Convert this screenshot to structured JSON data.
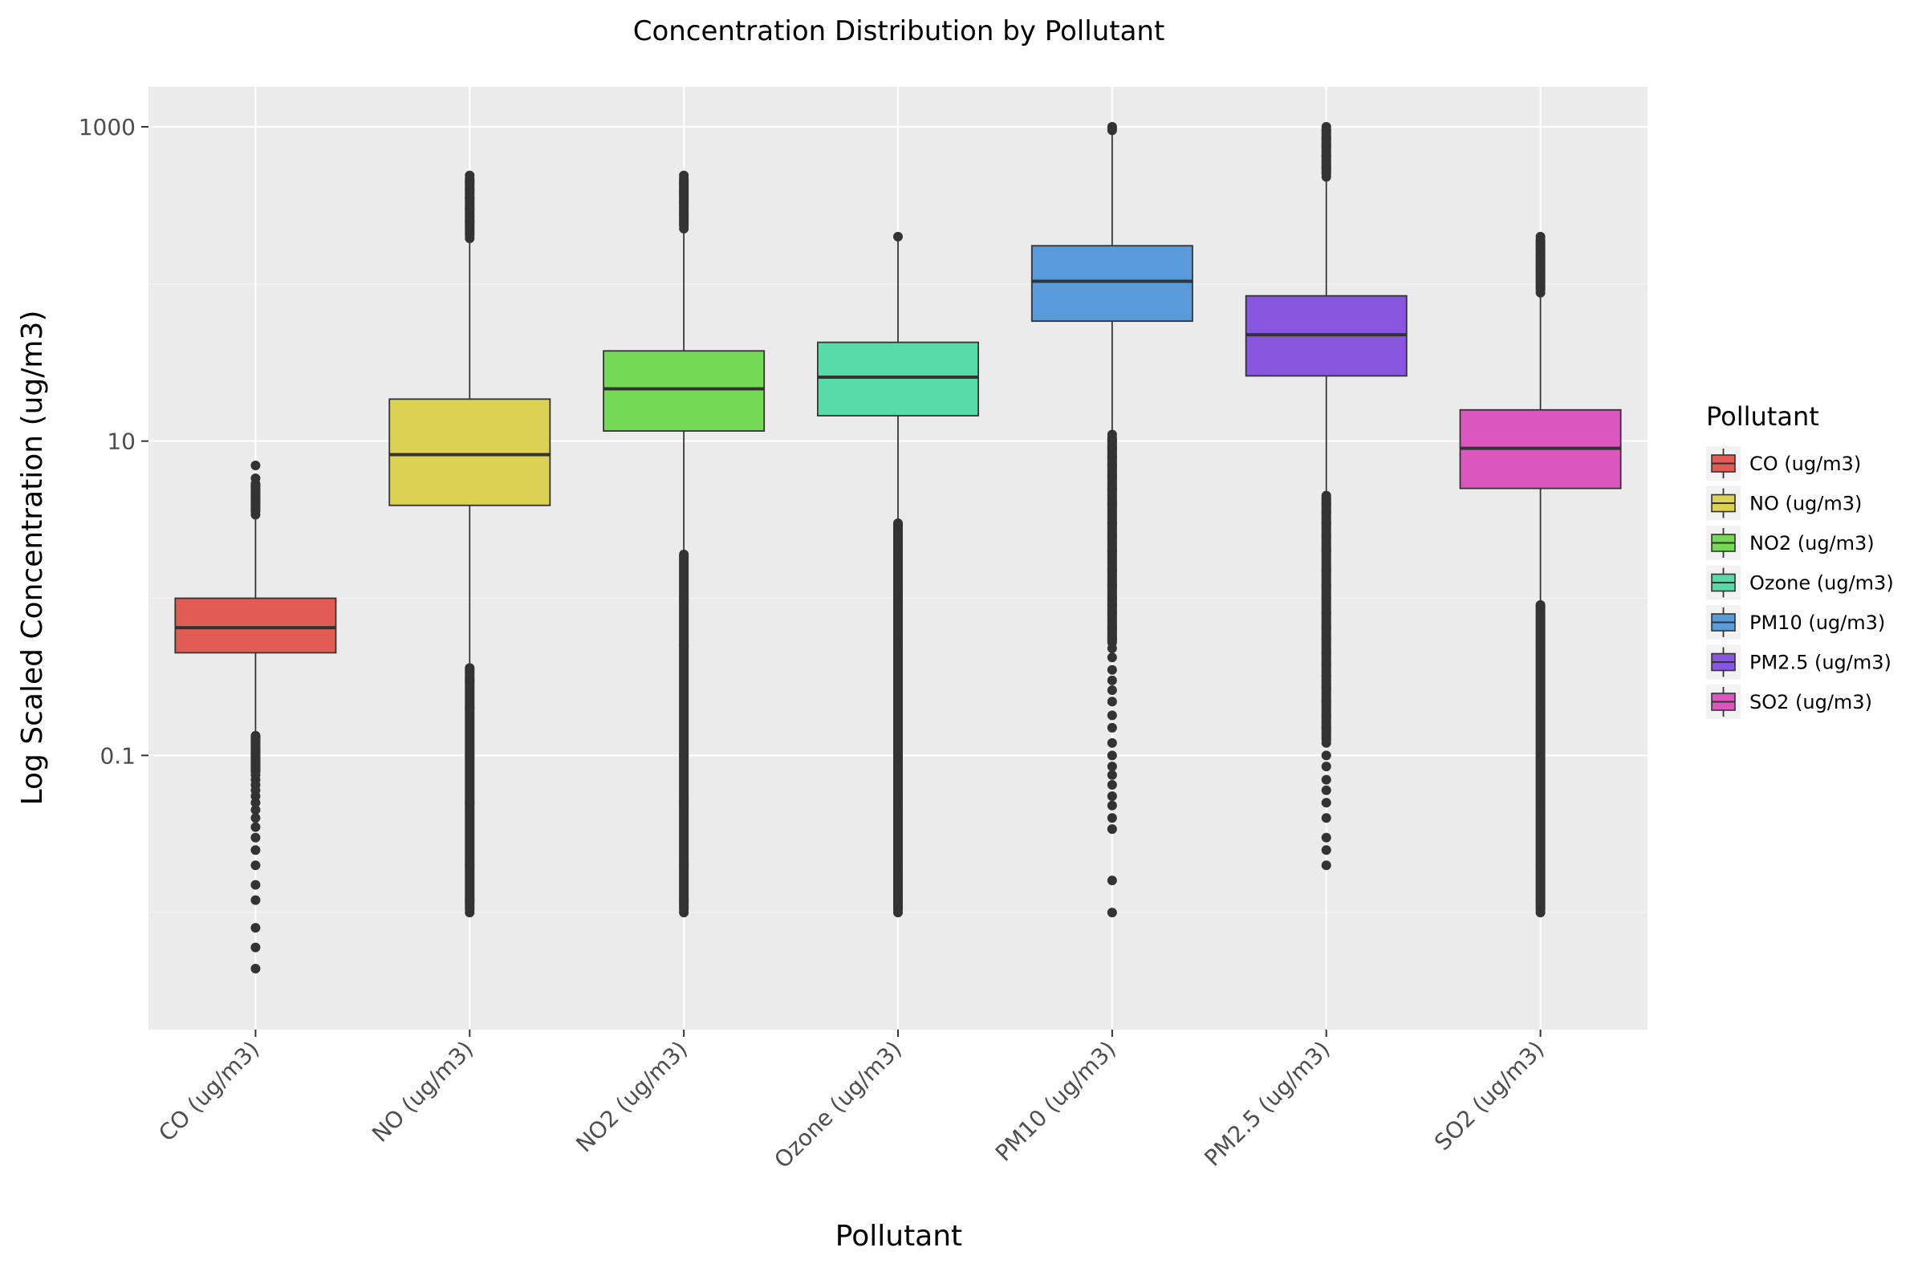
{
  "chart_data": {
    "type": "box",
    "title": "Concentration Distribution by Pollutant",
    "xlabel": "Pollutant",
    "ylabel": "Log Scaled Concentration (ug/m3)",
    "yscale": "log10",
    "ylim": [
      0.0018,
      1800
    ],
    "yticks": [
      {
        "value": 0.1,
        "label": "0.1"
      },
      {
        "value": 10,
        "label": "10"
      },
      {
        "value": 1000,
        "label": "1000"
      }
    ],
    "grid": true,
    "legend": {
      "title": "Pollutant",
      "position": "right"
    },
    "categories": [
      "CO (ug/m3)",
      "NO (ug/m3)",
      "NO2 (ug/m3)",
      "Ozone (ug/m3)",
      "PM10 (ug/m3)",
      "PM2.5 (ug/m3)",
      "SO2 (ug/m3)"
    ],
    "series": [
      {
        "name": "CO (ug/m3)",
        "color": "#e05c54",
        "q1": 0.45,
        "median": 0.65,
        "q3": 1.0,
        "whisker_low": 0.14,
        "whisker_high": 3.3,
        "outliers_low": [
          0.13,
          0.12,
          0.11,
          0.105,
          0.1,
          0.095,
          0.09,
          0.085,
          0.08,
          0.075,
          0.07,
          0.065,
          0.06,
          0.055,
          0.05,
          0.045,
          0.04,
          0.035,
          0.03,
          0.025,
          0.02,
          0.015,
          0.012,
          0.008,
          0.006,
          0.0044
        ],
        "outliers_low_band": [
          0.075,
          0.14
        ],
        "outliers_high": [
          3.4,
          3.7,
          4.0,
          4.4,
          4.8,
          5.3,
          5.8,
          7.0
        ],
        "outliers_high_band": [
          3.4,
          5.6
        ]
      },
      {
        "name": "NO (ug/m3)",
        "color": "#dbd154",
        "q1": 3.9,
        "median": 8.2,
        "q3": 18.5,
        "whisker_low": 0.38,
        "whisker_high": 190,
        "outliers_low": [
          0.36,
          0.3,
          0.2,
          0.1,
          0.05,
          0.02,
          0.012,
          0.01
        ],
        "outliers_low_band": [
          0.01,
          0.37
        ],
        "outliers_high": [
          195,
          250,
          300,
          350,
          400,
          450,
          490
        ],
        "outliers_high_band": [
          195,
          490
        ]
      },
      {
        "name": "NO2 (ug/m3)",
        "color": "#74d955",
        "q1": 11.6,
        "median": 21.5,
        "q3": 37.5,
        "whisker_low": 2.0,
        "whisker_high": 220,
        "outliers_low": [
          1.9,
          1.0,
          0.5,
          0.1,
          0.05,
          0.02,
          0.012,
          0.01
        ],
        "outliers_low_band": [
          0.01,
          1.95
        ],
        "outliers_high": [
          225,
          280,
          330,
          380,
          440,
          490
        ],
        "outliers_high_band": [
          225,
          490
        ]
      },
      {
        "name": "Ozone (ug/m3)",
        "color": "#57dba6",
        "q1": 14.5,
        "median": 25.5,
        "q3": 42.5,
        "whisker_low": 3.1,
        "whisker_high": 195,
        "outliers_low": [
          3.0,
          2.0,
          1.0,
          0.5,
          0.1,
          0.05,
          0.02,
          0.012,
          0.01
        ],
        "outliers_low_band": [
          0.01,
          3.05
        ],
        "outliers_high": [
          200
        ],
        "outliers_high_band": null
      },
      {
        "name": "PM10 (ug/m3)",
        "color": "#579bdb",
        "q1": 58,
        "median": 104,
        "q3": 175,
        "whisker_low": 11.5,
        "whisker_high": 990,
        "outliers_low": [
          11,
          10,
          9,
          8,
          7,
          6,
          5,
          4,
          3,
          2.5,
          2,
          1.5,
          1.2,
          1.0,
          0.9,
          0.8,
          0.65,
          0.55,
          0.48,
          0.42,
          0.35,
          0.3,
          0.26,
          0.22,
          0.18,
          0.15,
          0.12,
          0.1,
          0.085,
          0.075,
          0.065,
          0.055,
          0.048,
          0.04,
          0.034,
          0.016,
          0.01
        ],
        "outliers_low_band": [
          0.5,
          11
        ],
        "outliers_high": [
          950,
          980,
          1000
        ],
        "outliers_high_band": null
      },
      {
        "name": "PM2.5 (ug/m3)",
        "color": "#8956e0",
        "q1": 26,
        "median": 47.5,
        "q3": 84,
        "whisker_low": 4.7,
        "whisker_high": 1000,
        "outliers_low": [
          4.5,
          4.0,
          3.5,
          3.0,
          2.5,
          2.0,
          1.5,
          1.2,
          1.0,
          0.8,
          0.65,
          0.55,
          0.45,
          0.38,
          0.32,
          0.27,
          0.22,
          0.18,
          0.15,
          0.12,
          0.1,
          0.085,
          0.07,
          0.06,
          0.05,
          0.04,
          0.03,
          0.025,
          0.02
        ],
        "outliers_low_band": [
          0.12,
          4.6
        ],
        "outliers_high": [
          480,
          550,
          650,
          750,
          850,
          950,
          1000
        ],
        "outliers_high_band": [
          480,
          1000
        ]
      },
      {
        "name": "SO2 (ug/m3)",
        "color": "#db56bd",
        "q1": 5.0,
        "median": 9.0,
        "q3": 15.8,
        "whisker_low": 0.96,
        "whisker_high": 86,
        "outliers_low": [
          0.9,
          0.5,
          0.2,
          0.1,
          0.05,
          0.02,
          0.012,
          0.01
        ],
        "outliers_low_band": [
          0.01,
          0.95
        ],
        "outliers_high": [
          88,
          120,
          150,
          180,
          200
        ],
        "outliers_high_band": [
          88,
          200
        ]
      }
    ]
  }
}
